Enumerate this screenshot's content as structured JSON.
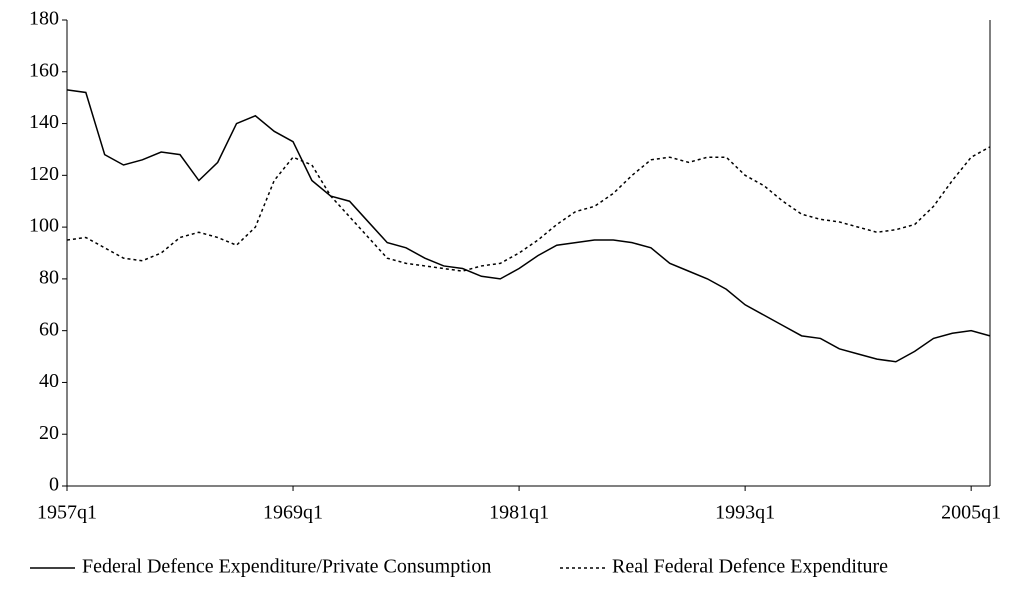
{
  "chart_data": {
    "type": "line",
    "categories": [
      "1957q1",
      null,
      null,
      null,
      null,
      null,
      null,
      null,
      null,
      null,
      null,
      null,
      "1969q1",
      null,
      null,
      null,
      null,
      null,
      null,
      null,
      null,
      null,
      null,
      null,
      "1981q1",
      null,
      null,
      null,
      null,
      null,
      null,
      null,
      null,
      null,
      null,
      null,
      "1993q1",
      null,
      null,
      null,
      null,
      null,
      null,
      null,
      null,
      null,
      null,
      null,
      "2005q1",
      null
    ],
    "series": [
      {
        "name": "Federal Defence Expenditure/Private Consumption",
        "color": "#000000",
        "dash": "none",
        "values": [
          153,
          152,
          128,
          124,
          126,
          129,
          128,
          118,
          125,
          140,
          143,
          137,
          133,
          118,
          112,
          110,
          102,
          94,
          92,
          88,
          85,
          84,
          81,
          80,
          84,
          89,
          93,
          94,
          95,
          95,
          94,
          92,
          86,
          83,
          80,
          76,
          70,
          66,
          62,
          58,
          57,
          53,
          51,
          49,
          48,
          52,
          57,
          59,
          60,
          58
        ]
      },
      {
        "name": "Real Federal Defence Expenditure",
        "color": "#000000",
        "dash": "3,3",
        "values": [
          95,
          96,
          92,
          88,
          87,
          90,
          96,
          98,
          96,
          93,
          100,
          118,
          127,
          124,
          112,
          104,
          96,
          88,
          86,
          85,
          84,
          83,
          85,
          86,
          90,
          95,
          101,
          106,
          108,
          113,
          120,
          126,
          127,
          125,
          127,
          127,
          120,
          116,
          110,
          105,
          103,
          102,
          100,
          98,
          99,
          101,
          108,
          118,
          127,
          131
        ]
      }
    ],
    "ylim": [
      0,
      180
    ],
    "yticks": [
      0,
      20,
      40,
      60,
      80,
      100,
      120,
      140,
      160,
      180
    ]
  }
}
